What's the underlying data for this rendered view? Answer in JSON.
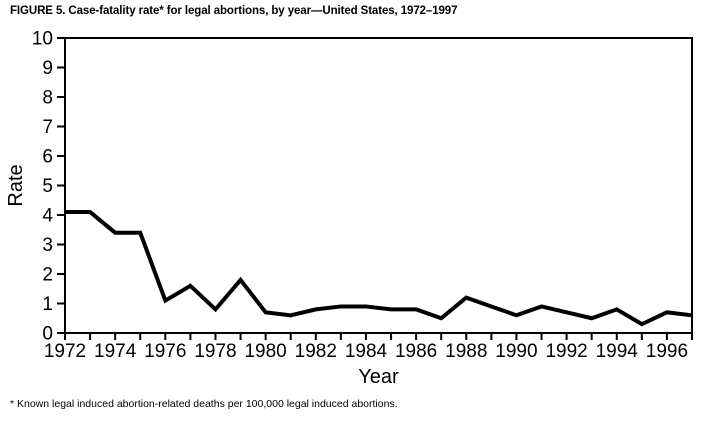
{
  "chart_data": {
    "type": "line",
    "title": "FIGURE 5. Case-fatality rate* for legal abortions, by year—United States, 1972–1997",
    "footnote": "* Known legal induced abortion-related deaths per 100,000 legal induced abortions.",
    "xlabel": "Year",
    "ylabel": "Rate",
    "series_name": "case-fatality-rate",
    "x": [
      1972,
      1973,
      1974,
      1975,
      1976,
      1977,
      1978,
      1979,
      1980,
      1981,
      1982,
      1983,
      1984,
      1985,
      1986,
      1987,
      1988,
      1989,
      1990,
      1991,
      1992,
      1993,
      1994,
      1995,
      1996,
      1997
    ],
    "values": [
      4.1,
      4.1,
      3.4,
      3.4,
      1.1,
      1.6,
      0.8,
      1.8,
      0.7,
      0.6,
      0.8,
      0.9,
      0.9,
      0.8,
      0.8,
      0.5,
      1.2,
      0.9,
      0.6,
      0.9,
      0.7,
      0.5,
      0.8,
      0.3,
      0.7,
      0.6
    ],
    "xlim": [
      1972,
      1997
    ],
    "ylim": [
      0,
      10
    ],
    "y_ticks": [
      0,
      1,
      2,
      3,
      4,
      5,
      6,
      7,
      8,
      9,
      10
    ],
    "x_tick_labels": [
      "1972",
      "1974",
      "1976",
      "1978",
      "1980",
      "1982",
      "1984",
      "1986",
      "1988",
      "1990",
      "1992",
      "1994",
      "1996"
    ],
    "x_minor_tick_every": 1,
    "grid": false,
    "legend": "none",
    "plot_border": "full-box",
    "line_color": "#000000",
    "axis_color": "#000000",
    "text_color": "#000000",
    "background_color": "#ffffff"
  }
}
